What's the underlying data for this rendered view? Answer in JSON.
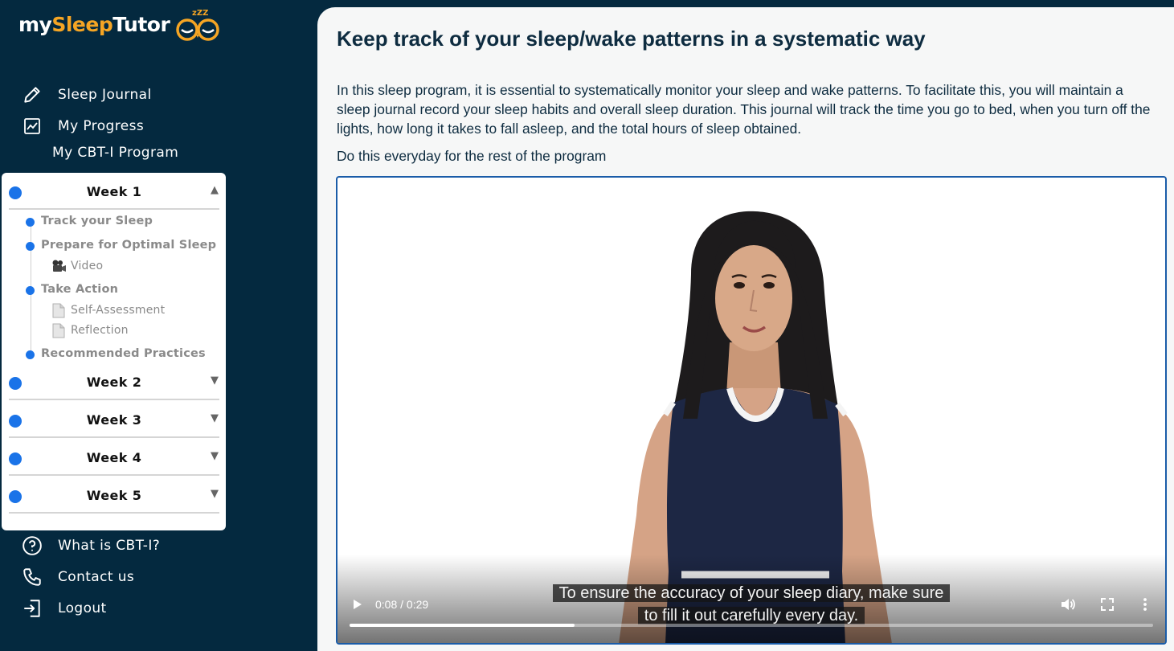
{
  "brand": {
    "part1": "my",
    "part2": "Sleep",
    "part3": "Tutor",
    "zzz": "zZZ"
  },
  "nav": {
    "sleep_journal": "Sleep Journal",
    "my_progress": "My Progress",
    "my_program": "My CBT-I Program",
    "what_is": "What is CBT-I?",
    "contact": "Contact us",
    "logout": "Logout"
  },
  "program": {
    "weeks": [
      {
        "label": "Week 1",
        "expanded": true
      },
      {
        "label": "Week 2",
        "expanded": false
      },
      {
        "label": "Week 3",
        "expanded": false
      },
      {
        "label": "Week 4",
        "expanded": false
      },
      {
        "label": "Week 5",
        "expanded": false
      }
    ],
    "week1_items": {
      "track": "Track your Sleep",
      "prepare": "Prepare for Optimal Sleep",
      "video": "Video",
      "take_action": "Take Action",
      "self_assessment": "Self-Assessment",
      "reflection": "Reflection",
      "recommended": "Recommended Practices"
    }
  },
  "main": {
    "title": "Keep track of your sleep/wake patterns in a systematic way",
    "paragraph": "In this sleep program, it is essential to systematically monitor your sleep and wake patterns. To facilitate this, you will maintain a sleep journal record your sleep habits and overall sleep duration. This journal will track the time you go to bed, when you turn off the lights, how long it takes to fall asleep, and the total hours of sleep obtained.",
    "instruction": "Do this everyday for the rest of the program"
  },
  "video": {
    "time": "0:08 / 0:29",
    "caption_line1": "To ensure the accuracy of your sleep diary, make sure",
    "caption_line2": "to fill it out carefully every day.",
    "progress_fraction": 0.28
  },
  "colors": {
    "sidebar_bg": "#04293f",
    "accent": "#f5a524",
    "dot": "#1a73e8",
    "title": "#0e2c40"
  }
}
